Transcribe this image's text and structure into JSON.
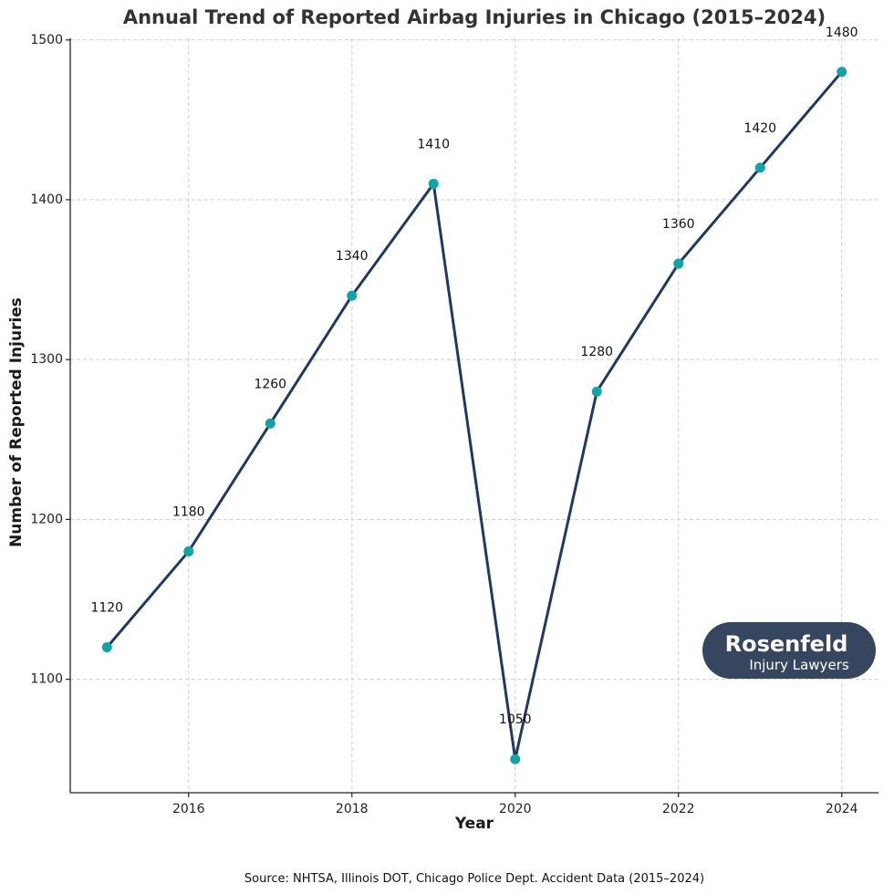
{
  "chart_data": {
    "type": "line",
    "title": "Annual Trend of Reported Airbag Injuries in Chicago (2015–2024)",
    "xlabel": "Year",
    "ylabel": "Number of Reported Injuries",
    "x": [
      2015,
      2016,
      2017,
      2018,
      2019,
      2020,
      2021,
      2022,
      2023,
      2024
    ],
    "series": [
      {
        "name": "Reported Airbag Injuries",
        "values": [
          1120,
          1180,
          1260,
          1340,
          1410,
          1050,
          1280,
          1360,
          1420,
          1480
        ]
      }
    ],
    "data_labels": [
      "1120",
      "1180",
      "1260",
      "1340",
      "1410",
      "1050",
      "1280",
      "1360",
      "1420",
      "1480"
    ],
    "xlim": [
      2014.55,
      2024.45
    ],
    "ylim": [
      1029,
      1501
    ],
    "xticks": [
      2016,
      2018,
      2020,
      2022,
      2024
    ],
    "yticks": [
      1100,
      1200,
      1300,
      1400,
      1500
    ],
    "grid": true,
    "legend": "none",
    "line_color": "#1f3864",
    "marker_color": "#12a3a3",
    "source": "Source: NHTSA, Illinois DOT, Chicago Police Dept. Accident Data (2015–2024)"
  },
  "logo": {
    "name": "Rosenfeld",
    "tagline": "Injury Lawyers",
    "background": "#36465e",
    "text_color": "#ffffff"
  }
}
